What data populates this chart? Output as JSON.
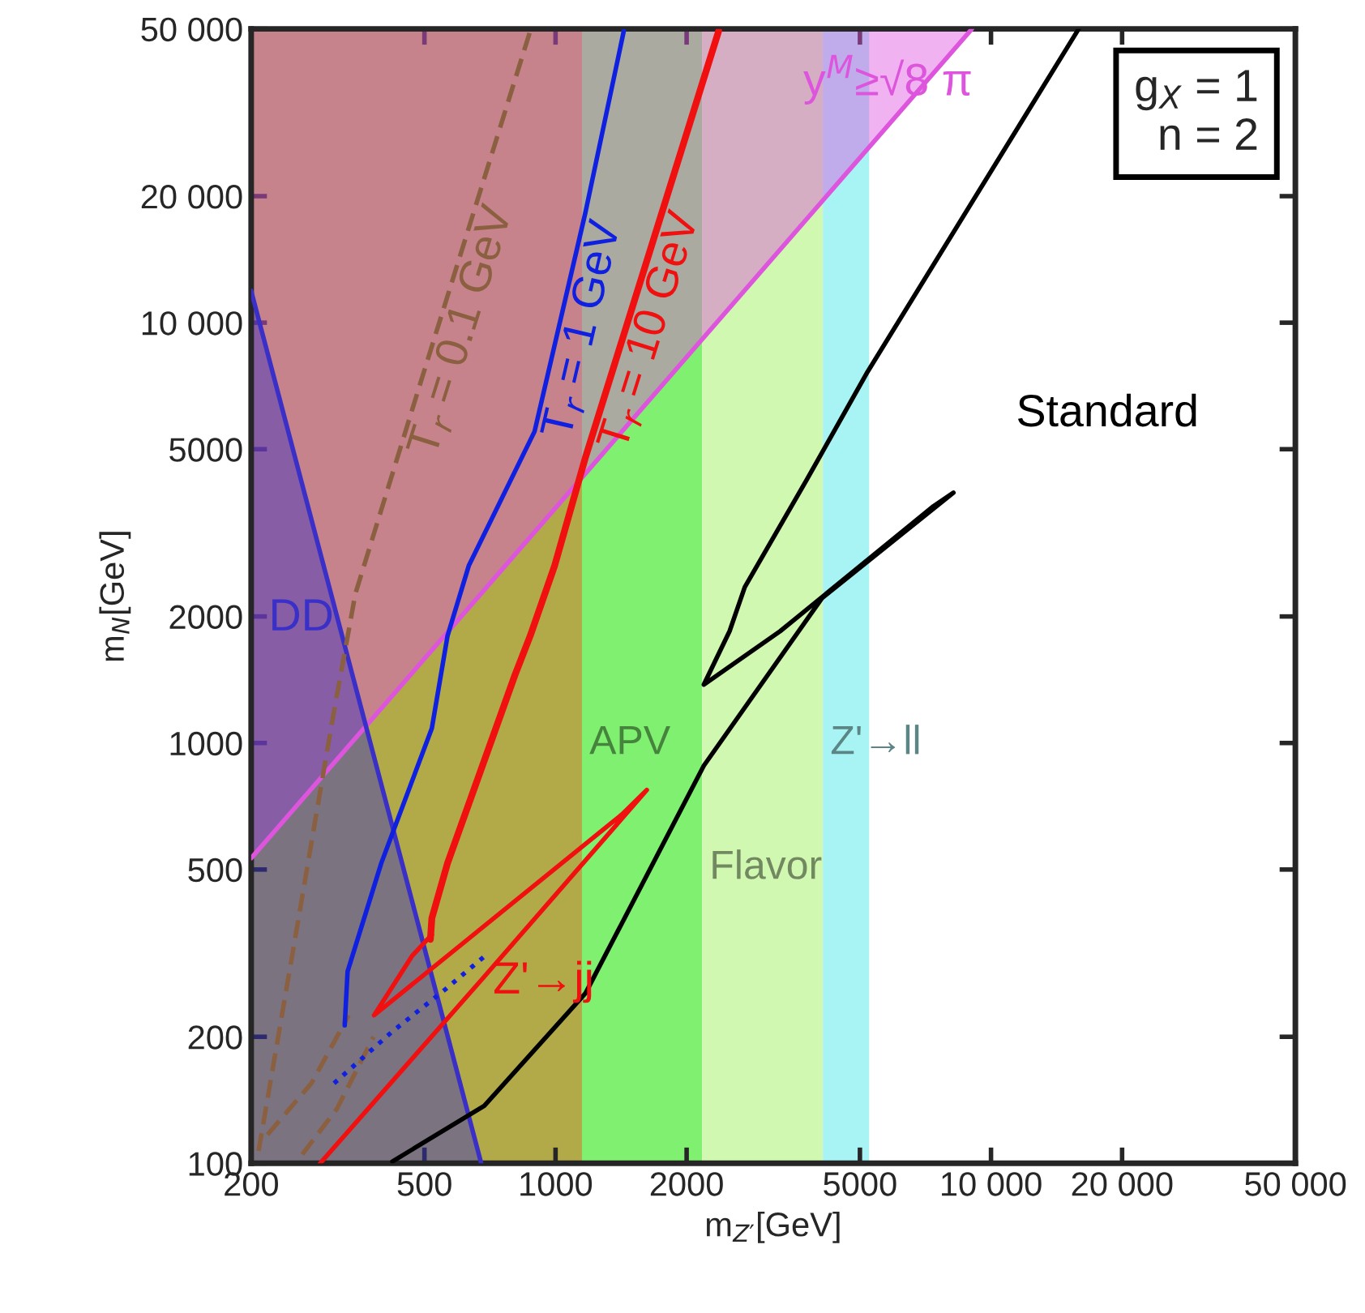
{
  "chart_data": {
    "type": "line",
    "xlabel": "m$_{Z′}$[GeV]",
    "ylabel": "m$_{N}$[GeV]",
    "log": "xy",
    "grid": false,
    "legend": false,
    "xlim": [
      200,
      50000
    ],
    "ylim": [
      100,
      50000
    ],
    "xticks": [
      200,
      500,
      1000,
      2000,
      5000,
      {
        "value": 10000,
        "label": "10 000"
      },
      {
        "value": 20000,
        "label": "20 000"
      },
      {
        "value": 50000,
        "label": "50 000"
      }
    ],
    "yticks": [
      100,
      200,
      500,
      1000,
      2000,
      5000,
      {
        "value": 10000,
        "label": "10 000"
      },
      {
        "value": 20000,
        "label": "20 000"
      },
      {
        "value": 50000,
        "label": "50 000"
      }
    ],
    "bands": [
      {
        "axis": "x",
        "from": 200,
        "to": 1150,
        "color": "#b2aa48"
      },
      {
        "axis": "x",
        "from": 1150,
        "to": 2170,
        "color": "#80f070",
        "label": "APV"
      },
      {
        "axis": "x",
        "from": 2170,
        "to": 4110,
        "color": "#d0f8b0",
        "label": "Flavor"
      },
      {
        "axis": "x",
        "from": 4110,
        "to": 5250,
        "color": "#a8f4f4",
        "label": "Z'→ll"
      }
    ],
    "annotations": [
      "g$_{X}$ = 1\nn = 2"
    ],
    "series": [
      {
        "name": "y$^{M}$≥√8 π",
        "color": "#dd55dd",
        "x": [
          200,
          9040
        ],
        "values": [
          532,
          50000
        ],
        "lower": [
          532,
          50000
        ],
        "upper": [
          50000,
          50000
        ]
      },
      {
        "name": "DD",
        "color": "#3a30c8",
        "x": [
          200,
          675
        ],
        "values": [
          11900,
          100
        ],
        "lower": [
          100,
          100
        ],
        "upper": [
          11900,
          100
        ]
      },
      {
        "name": "T$_{r}$ = 0.1 GeV",
        "color": "#8b6040",
        "line_style": "dashed",
        "x": [
          208,
          251,
          305,
          347,
          495,
          875
        ],
        "values": [
          107,
          332,
          1084,
          2265,
          7460,
          49500
        ]
      },
      {
        "color": "#8b6040",
        "line_style": "dashed",
        "x": [
          218,
          275,
          335
        ],
        "values": [
          117,
          155,
          225
        ]
      },
      {
        "color": "#8b6040",
        "line_style": "dashed",
        "x": [
          262,
          315,
          382
        ],
        "values": [
          105,
          135,
          200
        ]
      },
      {
        "name": "T$_{r}$ = 1 GeV",
        "color": "#1020e0",
        "x": [
          328,
          333,
          398,
          520,
          565,
          632,
          895,
          1170,
          1435
        ],
        "values": [
          213,
          286,
          518,
          1084,
          1800,
          2640,
          5510,
          18200,
          49500
        ]
      },
      {
        "color": "#1020e0",
        "line_style": "dotted",
        "x": [
          310,
          420,
          560,
          685
        ],
        "values": [
          155,
          205,
          260,
          310
        ]
      },
      {
        "name": "T$_{r}$ = 10 GeV",
        "color": "#f01010",
        "x": [
          516,
          520,
          565,
          807,
          875,
          995,
          1172,
          2370
        ],
        "values": [
          341,
          383,
          518,
          1452,
          1800,
          2640,
          4790,
          49500
        ]
      },
      {
        "name": "Z'→jj",
        "color": "#f01010",
        "x": [
          288,
          686,
          1620,
          1420,
          383,
          469,
          520
        ],
        "values": [
          100,
          278,
          773,
          676,
          225,
          312,
          350
        ]
      },
      {
        "name": "Standard",
        "color": "#000000",
        "x": [
          422,
          686,
          1172,
          2190,
          4090,
          8200,
          7380,
          3280,
          2190,
          2510,
          2720,
          3770,
          5210,
          15900
        ],
        "values": [
          101,
          137,
          254,
          883,
          2210,
          3940,
          3660,
          1845,
          1377,
          1845,
          2350,
          4220,
          7650,
          50000
        ]
      }
    ]
  }
}
